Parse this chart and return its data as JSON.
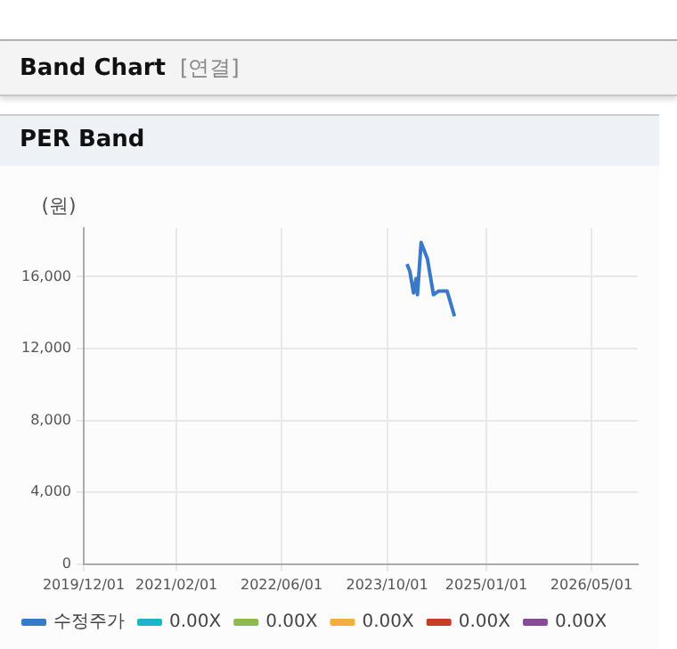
{
  "chart_data": {
    "type": "line",
    "title": "PER Band",
    "annotations": [
      "Band Chart",
      "[연결]"
    ],
    "ylabel": "(원)",
    "xlim": [
      "2019-12-01",
      "2026-12-01"
    ],
    "xticks": [
      {
        "value": "2019-12-01",
        "label": "2019/12/01"
      },
      {
        "value": "2021-02-01",
        "label": "2021/02/01"
      },
      {
        "value": "2022-06-01",
        "label": "2022/06/01"
      },
      {
        "value": "2023-10-01",
        "label": "2023/10/01"
      },
      {
        "value": "2025-01-01",
        "label": "2025/01/01"
      },
      {
        "value": "2026-05-01",
        "label": "2026/05/01"
      }
    ],
    "ylim": [
      0,
      18700
    ],
    "yticks": [
      {
        "value": 0,
        "label": "0"
      },
      {
        "value": 4000,
        "label": "4,000"
      },
      {
        "value": 8000,
        "label": "8,000"
      },
      {
        "value": 12000,
        "label": "12,000"
      },
      {
        "value": 16000,
        "label": "16,000"
      }
    ],
    "grid": true,
    "legend": "bottom",
    "marker": "none",
    "line_style": "solid",
    "series": [
      {
        "name": "수정주가",
        "color": "#3a78c8",
        "x": [
          "2024-01-01",
          "2024-01-14",
          "2024-01-31",
          "2024-02-12",
          "2024-02-18",
          "2024-03-06",
          "2024-04-04",
          "2024-05-02",
          "2024-05-25",
          "2024-07-04",
          "2024-08-07"
        ],
        "values": [
          16700,
          16300,
          15100,
          15900,
          15000,
          17900,
          17000,
          15000,
          15200,
          15200,
          13800
        ]
      },
      {
        "name": "0.00X",
        "color": "#1fb5c5"
      },
      {
        "name": "0.00X",
        "color": "#8dbb4f"
      },
      {
        "name": "0.00X",
        "color": "#f0b040"
      },
      {
        "name": "0.00X",
        "color": "#c83a2a"
      },
      {
        "name": "0.00X",
        "color": "#8a4a9a"
      }
    ]
  }
}
